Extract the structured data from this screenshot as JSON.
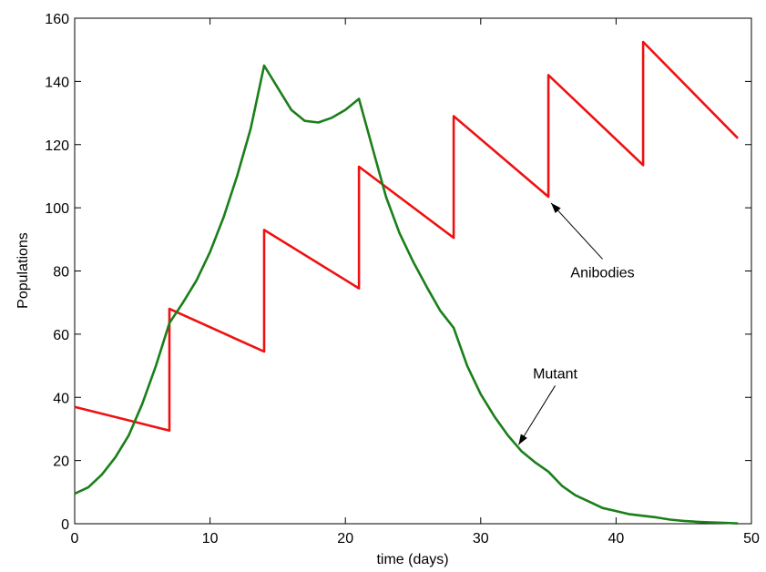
{
  "chart_data": {
    "type": "line",
    "title": "",
    "xlabel": "time (days)",
    "ylabel": "Populations",
    "xlim": [
      0,
      50
    ],
    "ylim": [
      0,
      160
    ],
    "xticks": [
      0,
      10,
      20,
      30,
      40,
      50
    ],
    "yticks": [
      0,
      20,
      40,
      60,
      80,
      100,
      120,
      140,
      160
    ],
    "grid": false,
    "legend": "none",
    "series": [
      {
        "color": "#ee1111",
        "points": [
          [
            0,
            37
          ],
          [
            7,
            29.5
          ],
          [
            7,
            68
          ],
          [
            14,
            54.5
          ],
          [
            14,
            93
          ],
          [
            21,
            74.5
          ],
          [
            21,
            113
          ],
          [
            28,
            90.5
          ],
          [
            28,
            129
          ],
          [
            35,
            103.5
          ],
          [
            35,
            142
          ],
          [
            42,
            113.5
          ],
          [
            42,
            152.5
          ],
          [
            49,
            122
          ]
        ]
      },
      {
        "color": "#1a7f1a",
        "points": [
          [
            0,
            9.5
          ],
          [
            1,
            11.5
          ],
          [
            2,
            15.5
          ],
          [
            3,
            21
          ],
          [
            4,
            28
          ],
          [
            5,
            38
          ],
          [
            6,
            50
          ],
          [
            7,
            63.5
          ],
          [
            8,
            70
          ],
          [
            9,
            77
          ],
          [
            10,
            86
          ],
          [
            11,
            97
          ],
          [
            12,
            110
          ],
          [
            13,
            125
          ],
          [
            14,
            145
          ],
          [
            15,
            138
          ],
          [
            16,
            131
          ],
          [
            17,
            127.5
          ],
          [
            18,
            127
          ],
          [
            19,
            128.5
          ],
          [
            20,
            131
          ],
          [
            21,
            134.5
          ],
          [
            22,
            119
          ],
          [
            23,
            103.5
          ],
          [
            24,
            92
          ],
          [
            25,
            83
          ],
          [
            26,
            75
          ],
          [
            27,
            67.5
          ],
          [
            28,
            62
          ],
          [
            29,
            50
          ],
          [
            30,
            41
          ],
          [
            31,
            34
          ],
          [
            32,
            28
          ],
          [
            33,
            23
          ],
          [
            34,
            19.5
          ],
          [
            35,
            16.5
          ],
          [
            36,
            12
          ],
          [
            37,
            9
          ],
          [
            38,
            7
          ],
          [
            39,
            5
          ],
          [
            40,
            4
          ],
          [
            41,
            3
          ],
          [
            42,
            2.5
          ],
          [
            43,
            2
          ],
          [
            44,
            1.3
          ],
          [
            45,
            0.9
          ],
          [
            46,
            0.6
          ],
          [
            47,
            0.4
          ],
          [
            48,
            0.3
          ],
          [
            49,
            0.1
          ]
        ]
      }
    ],
    "annotations": [
      {
        "text": "Anibodies",
        "text_x": 39,
        "text_y": 78,
        "arrow_to": [
          35.2,
          101.5
        ]
      },
      {
        "text": "Mutant",
        "text_x": 35.5,
        "text_y": 46,
        "arrow_to": [
          32.8,
          25
        ]
      }
    ]
  }
}
